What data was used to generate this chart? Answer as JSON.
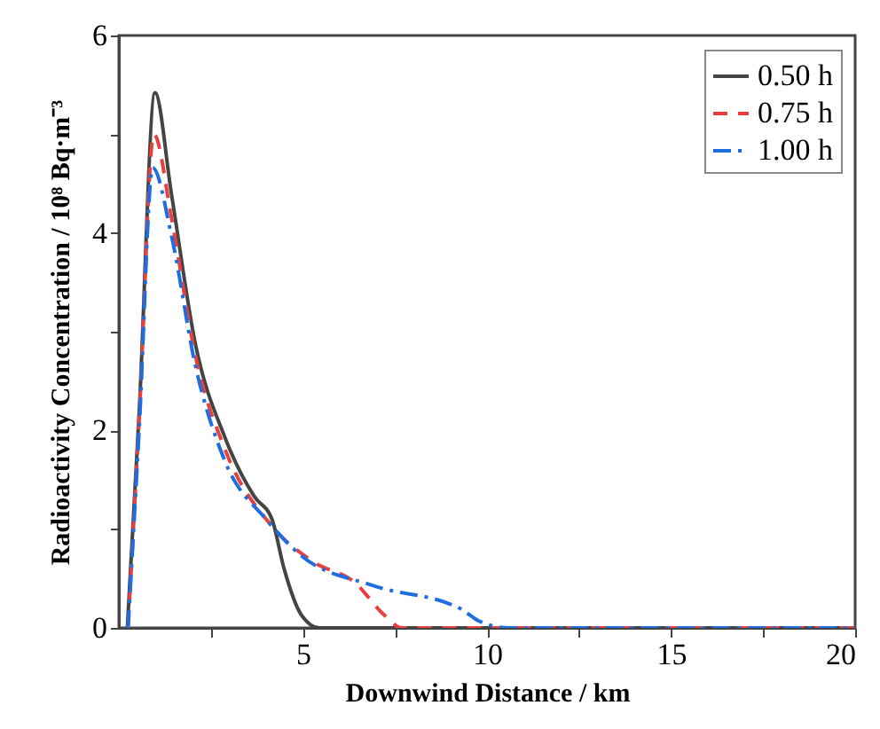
{
  "chart_data": {
    "type": "line",
    "xlabel": "Downwind Distance / km",
    "ylabel": "Radioactivity Concentration / 10⁸ Bq·m⁻³",
    "xlim": [
      0,
      20
    ],
    "xticks": [
      {
        "value": 2.5,
        "label": null
      },
      5,
      {
        "value": 7.5,
        "label": null
      },
      10,
      {
        "value": 12.5,
        "label": null
      },
      15,
      {
        "value": 17.5,
        "label": null
      },
      20
    ],
    "ylim": [
      0,
      6
    ],
    "yticks": [
      0,
      {
        "value": 1,
        "label": null
      },
      2,
      {
        "value": 3,
        "label": null
      },
      4,
      {
        "value": 5,
        "label": null
      },
      6
    ],
    "legend": "top right",
    "grid": false,
    "series": [
      {
        "name": "0.50 h",
        "color": "#444444",
        "line_style": "solid",
        "x": [
          0.23,
          0.55,
          0.98,
          1.43,
          2.07,
          2.88,
          3.68,
          4.16,
          4.48,
          4.96,
          5.45,
          20
        ],
        "values": [
          0,
          2.17,
          5.42,
          4.39,
          2.89,
          1.93,
          1.33,
          1.1,
          0.61,
          0.13,
          0,
          0
        ]
      },
      {
        "name": "0.75 h",
        "color": "#e8403f",
        "line_style": "dashed",
        "x": [
          0.25,
          0.55,
          0.95,
          1.43,
          2.07,
          2.88,
          4.16,
          5.28,
          6.41,
          7.21,
          7.69,
          20
        ],
        "values": [
          0,
          2.1,
          5.0,
          4.15,
          2.77,
          1.81,
          1.03,
          0.67,
          0.46,
          0.13,
          0,
          0
        ]
      },
      {
        "name": "1.00 h",
        "color": "#1f6ee0",
        "line_style": "dashdot",
        "x": [
          0.25,
          0.55,
          0.92,
          1.43,
          2.07,
          2.88,
          4.0,
          4.96,
          6.89,
          9.3,
          9.78,
          10.6,
          20
        ],
        "values": [
          0,
          2.0,
          4.66,
          3.97,
          2.67,
          1.69,
          1.1,
          0.73,
          0.43,
          0.19,
          0.07,
          0,
          0
        ]
      }
    ]
  }
}
